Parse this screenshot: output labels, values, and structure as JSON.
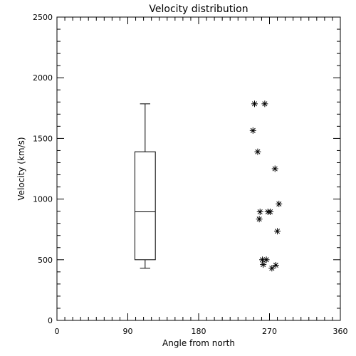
{
  "chart_data": {
    "type": "box+scatter",
    "title": "Velocity distribution",
    "xlabel": "Angle from north",
    "ylabel": "Velocity (km/s)",
    "xlim": [
      0,
      360
    ],
    "ylim": [
      0,
      2500
    ],
    "xticks": [
      0,
      90,
      180,
      270,
      360
    ],
    "yticks": [
      0,
      500,
      1000,
      1500,
      2000,
      2500
    ],
    "x_minor_step": 10,
    "y_minor_step": 100,
    "grid": false,
    "box": {
      "x": 112,
      "half_width_units": 13,
      "whisker_low": 430,
      "q1": 500,
      "median": 895,
      "q3": 1390,
      "whisker_high": 1785
    },
    "scatter_marker": "asterisk",
    "points": [
      {
        "x": 251,
        "y": 1785
      },
      {
        "x": 264,
        "y": 1785
      },
      {
        "x": 249,
        "y": 1565
      },
      {
        "x": 255,
        "y": 1390
      },
      {
        "x": 277,
        "y": 1250
      },
      {
        "x": 282,
        "y": 960
      },
      {
        "x": 258,
        "y": 895
      },
      {
        "x": 268,
        "y": 895
      },
      {
        "x": 271,
        "y": 895
      },
      {
        "x": 257,
        "y": 835
      },
      {
        "x": 280,
        "y": 735
      },
      {
        "x": 261,
        "y": 500
      },
      {
        "x": 266,
        "y": 500
      },
      {
        "x": 262,
        "y": 460
      },
      {
        "x": 278,
        "y": 455
      },
      {
        "x": 273,
        "y": 430
      }
    ]
  }
}
